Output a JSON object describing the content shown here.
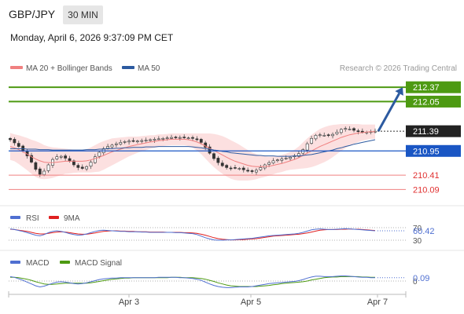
{
  "header": {
    "symbol": "GBP/JPY",
    "timeframe": "30 MIN",
    "timestamp": "Monday, April 6, 2026 9:37:09 PM CET"
  },
  "legend": {
    "ma20": "MA 20 + Bollinger Bands",
    "ma50": "MA 50",
    "ma20_color": "#f08080",
    "ma50_color": "#2c5aa0",
    "credit": "Research © 2026 Trading Central"
  },
  "chart_data": {
    "type": "candlestick",
    "x_ticks": [
      "Apr 3",
      "Apr 5",
      "Apr 7"
    ],
    "price_range": [
      209.8,
      212.6
    ],
    "price_levels": [
      {
        "label": "212.37",
        "value": 212.37,
        "kind": "resistance",
        "color": "#4d9a12"
      },
      {
        "label": "212.05",
        "value": 212.05,
        "kind": "resistance",
        "color": "#4d9a12"
      },
      {
        "label": "211.39",
        "value": 211.39,
        "kind": "last",
        "color": "#222222"
      },
      {
        "label": "210.95",
        "value": 210.95,
        "kind": "pivot",
        "color": "#1a56c4"
      },
      {
        "label": "210.41",
        "value": 210.41,
        "kind": "support",
        "color": "#e03030"
      },
      {
        "label": "210.09",
        "value": 210.09,
        "kind": "support",
        "color": "#e03030"
      }
    ],
    "projection": {
      "from": 211.39,
      "to": 212.37,
      "color": "#2c5aa0"
    },
    "close": [
      211.2,
      211.13,
      211.05,
      210.96,
      210.84,
      210.7,
      210.54,
      210.43,
      210.5,
      210.64,
      210.76,
      210.82,
      210.83,
      210.79,
      210.72,
      210.64,
      210.58,
      210.56,
      210.6,
      210.7,
      210.82,
      210.92,
      211.0,
      211.05,
      211.08,
      211.11,
      211.14,
      211.16,
      211.17,
      211.17,
      211.17,
      211.18,
      211.19,
      211.2,
      211.21,
      211.22,
      211.23,
      211.24,
      211.25,
      211.25,
      211.25,
      211.25,
      211.24,
      211.23,
      211.2,
      211.14,
      211.03,
      210.9,
      210.78,
      210.69,
      210.62,
      210.58,
      210.57,
      210.57,
      210.56,
      210.53,
      210.5,
      210.49,
      210.52,
      210.58,
      210.64,
      210.69,
      210.73,
      210.75,
      210.77,
      210.79,
      210.81,
      210.84,
      210.89,
      210.98,
      211.11,
      211.23,
      211.3,
      211.31,
      211.3,
      211.3,
      211.32,
      211.37,
      211.43,
      211.45,
      211.44,
      211.41,
      211.38,
      211.37,
      211.37,
      211.38,
      211.39
    ],
    "ma20": [
      211.05,
      211.02,
      210.98,
      210.93,
      210.88,
      210.82,
      210.77,
      210.73,
      210.7,
      210.69,
      210.69,
      210.7,
      210.71,
      210.72,
      210.72,
      210.72,
      210.72,
      210.72,
      210.73,
      210.75,
      210.78,
      210.81,
      210.85,
      210.89,
      210.93,
      210.96,
      210.99,
      211.02,
      211.05,
      211.07,
      211.09,
      211.11,
      211.13,
      211.15,
      211.16,
      211.18,
      211.19,
      211.2,
      211.21,
      211.21,
      211.21,
      211.21,
      211.2,
      211.18,
      211.15,
      211.11,
      211.06,
      211.01,
      210.96,
      210.91,
      210.86,
      210.81,
      210.76,
      210.72,
      210.69,
      210.66,
      210.63,
      210.61,
      210.6,
      210.6,
      210.6,
      210.61,
      210.63,
      210.65,
      210.67,
      210.7,
      210.73,
      210.76,
      210.8,
      210.85,
      210.9,
      210.95,
      211.0,
      211.05,
      211.09,
      211.13,
      211.17,
      211.21,
      211.25,
      211.28,
      211.31,
      211.33,
      211.35,
      211.36,
      211.37,
      211.38,
      211.38
    ],
    "ma50": [
      211.0,
      211.0,
      211.0,
      211.0,
      210.99,
      210.99,
      210.99,
      210.98,
      210.98,
      210.98,
      210.97,
      210.97,
      210.97,
      210.97,
      210.97,
      210.97,
      210.97,
      210.97,
      210.98,
      210.98,
      210.98,
      210.99,
      210.99,
      211.0,
      211.0,
      211.01,
      211.01,
      211.02,
      211.02,
      211.03,
      211.03,
      211.03,
      211.04,
      211.04,
      211.04,
      211.05,
      211.05,
      211.05,
      211.05,
      211.05,
      211.05,
      211.05,
      211.05,
      211.04,
      211.03,
      211.02,
      211.0,
      210.99,
      210.97,
      210.96,
      210.94,
      210.93,
      210.91,
      210.9,
      210.89,
      210.88,
      210.87,
      210.86,
      210.85,
      210.85,
      210.84,
      210.84,
      210.84,
      210.83,
      210.83,
      210.83,
      210.83,
      210.84,
      210.84,
      210.85,
      210.86,
      210.87,
      210.89,
      210.91,
      210.93,
      210.95,
      210.97,
      211.0,
      211.02,
      211.05,
      211.07,
      211.1,
      211.12,
      211.14,
      211.16,
      211.18,
      211.2
    ],
    "band_width": [
      0.3,
      0.3,
      0.32,
      0.34,
      0.36,
      0.38,
      0.4,
      0.4,
      0.38,
      0.36,
      0.34,
      0.32,
      0.3,
      0.28,
      0.27,
      0.26,
      0.25,
      0.25,
      0.26,
      0.28,
      0.3,
      0.32,
      0.32,
      0.31,
      0.3,
      0.28,
      0.26,
      0.24,
      0.22,
      0.2,
      0.18,
      0.17,
      0.16,
      0.15,
      0.14,
      0.14,
      0.13,
      0.13,
      0.13,
      0.13,
      0.13,
      0.13,
      0.14,
      0.16,
      0.19,
      0.23,
      0.28,
      0.33,
      0.37,
      0.4,
      0.42,
      0.43,
      0.43,
      0.42,
      0.4,
      0.37,
      0.34,
      0.31,
      0.28,
      0.25,
      0.23,
      0.21,
      0.2,
      0.19,
      0.19,
      0.19,
      0.2,
      0.22,
      0.25,
      0.29,
      0.33,
      0.36,
      0.38,
      0.39,
      0.39,
      0.38,
      0.36,
      0.33,
      0.3,
      0.27,
      0.24,
      0.22,
      0.2,
      0.18,
      0.17,
      0.16,
      0.16
    ],
    "rsi": {
      "label": "RSI",
      "signal_label": "9MA",
      "value_label": "60.42",
      "ticks": [
        {
          "label": "70",
          "value": 70
        },
        {
          "label": "30",
          "value": 30
        }
      ],
      "range": [
        20,
        80
      ],
      "color": "#4f6fd1",
      "signal_color": "#e02020",
      "values": [
        66,
        64,
        61,
        58,
        54,
        50,
        46,
        44,
        48,
        54,
        58,
        60,
        58,
        55,
        51,
        48,
        46,
        47,
        50,
        54,
        58,
        61,
        62,
        61,
        60,
        59,
        58,
        58,
        57,
        57,
        57,
        56,
        56,
        55,
        55,
        55,
        55,
        55,
        55,
        54,
        54,
        53,
        52,
        51,
        48,
        43,
        38,
        34,
        31,
        30,
        30,
        31,
        31,
        32,
        33,
        34,
        35,
        36,
        38,
        40,
        42,
        44,
        45,
        46,
        47,
        48,
        49,
        50,
        52,
        55,
        59,
        63,
        65,
        66,
        65,
        64,
        64,
        65,
        66,
        67,
        66,
        65,
        64,
        63,
        62,
        61,
        60
      ],
      "signal": [
        65,
        64,
        62,
        60,
        58,
        55,
        52,
        50,
        50,
        52,
        54,
        56,
        57,
        56,
        54,
        52,
        50,
        49,
        49,
        51,
        53,
        56,
        58,
        59,
        60,
        60,
        59,
        59,
        58,
        58,
        57,
        57,
        57,
        56,
        56,
        56,
        56,
        55,
        55,
        55,
        55,
        54,
        54,
        53,
        52,
        49,
        46,
        42,
        38,
        35,
        33,
        32,
        31,
        31,
        32,
        32,
        33,
        34,
        35,
        37,
        39,
        41,
        43,
        44,
        45,
        46,
        47,
        48,
        49,
        51,
        53,
        56,
        59,
        62,
        63,
        64,
        64,
        64,
        65,
        65,
        66,
        65,
        65,
        64,
        63,
        62,
        61
      ]
    },
    "macd": {
      "label": "MACD",
      "signal_label": "MACD Signal",
      "value_label": "0.09",
      "ticks": [
        {
          "label": "0",
          "value": 0
        }
      ],
      "range": [
        -0.3,
        0.3
      ],
      "color": "#4f6fd1",
      "signal_color": "#4d9a12",
      "values": [
        0.12,
        0.1,
        0.06,
        0.02,
        -0.03,
        -0.08,
        -0.13,
        -0.16,
        -0.14,
        -0.1,
        -0.06,
        -0.03,
        -0.02,
        -0.03,
        -0.05,
        -0.07,
        -0.08,
        -0.07,
        -0.05,
        -0.02,
        0.01,
        0.04,
        0.06,
        0.07,
        0.08,
        0.08,
        0.09,
        0.09,
        0.09,
        0.09,
        0.09,
        0.09,
        0.09,
        0.09,
        0.09,
        0.1,
        0.1,
        0.1,
        0.1,
        0.1,
        0.09,
        0.09,
        0.08,
        0.07,
        0.05,
        0.02,
        -0.03,
        -0.08,
        -0.12,
        -0.15,
        -0.17,
        -0.18,
        -0.18,
        -0.17,
        -0.16,
        -0.16,
        -0.16,
        -0.15,
        -0.13,
        -0.11,
        -0.09,
        -0.07,
        -0.06,
        -0.05,
        -0.04,
        -0.03,
        -0.02,
        -0.01,
        0.01,
        0.04,
        0.08,
        0.11,
        0.13,
        0.13,
        0.12,
        0.12,
        0.12,
        0.13,
        0.14,
        0.14,
        0.13,
        0.12,
        0.11,
        0.1,
        0.1,
        0.09,
        0.09
      ],
      "signal": [
        0.1,
        0.1,
        0.09,
        0.07,
        0.05,
        0.02,
        -0.02,
        -0.05,
        -0.08,
        -0.09,
        -0.09,
        -0.08,
        -0.07,
        -0.06,
        -0.06,
        -0.06,
        -0.06,
        -0.06,
        -0.06,
        -0.05,
        -0.03,
        -0.01,
        0.01,
        0.03,
        0.05,
        0.06,
        0.07,
        0.08,
        0.08,
        0.09,
        0.09,
        0.09,
        0.09,
        0.09,
        0.09,
        0.09,
        0.09,
        0.09,
        0.1,
        0.1,
        0.1,
        0.09,
        0.09,
        0.09,
        0.08,
        0.07,
        0.05,
        0.02,
        -0.01,
        -0.05,
        -0.08,
        -0.11,
        -0.13,
        -0.14,
        -0.15,
        -0.15,
        -0.15,
        -0.15,
        -0.15,
        -0.14,
        -0.13,
        -0.12,
        -0.1,
        -0.09,
        -0.07,
        -0.06,
        -0.05,
        -0.04,
        -0.03,
        -0.02,
        0.0,
        0.03,
        0.05,
        0.07,
        0.09,
        0.1,
        0.11,
        0.11,
        0.12,
        0.12,
        0.12,
        0.12,
        0.12,
        0.11,
        0.11,
        0.1,
        0.1
      ]
    }
  }
}
